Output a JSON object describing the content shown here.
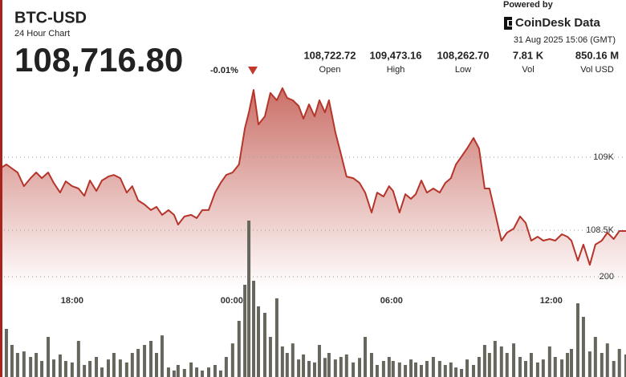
{
  "header": {
    "title": "BTC-USD",
    "subtitle": "24 Hour Chart",
    "price": "108,716.80",
    "change": "-0.01%",
    "powered_by": "Powered by",
    "brand": "CoinDesk Data",
    "timestamp": "31 Aug 2025 15:06 (GMT)",
    "stats": [
      {
        "value": "108,722.72",
        "label": "Open"
      },
      {
        "value": "109,473.16",
        "label": "High"
      },
      {
        "value": "108,262.70",
        "label": "Low"
      },
      {
        "value": "7.81 K",
        "label": "Vol"
      },
      {
        "value": "850.16 M",
        "label": "Vol USD"
      }
    ]
  },
  "chart_data": {
    "type": "line",
    "x": [
      15.29,
      15.53,
      15.74,
      15.95,
      16.19,
      16.44,
      16.65,
      16.86,
      17.1,
      17.31,
      17.55,
      17.76,
      18.0,
      18.24,
      18.46,
      18.67,
      18.91,
      19.12,
      19.36,
      19.57,
      19.81,
      20.05,
      20.26,
      20.48,
      20.72,
      20.96,
      21.17,
      21.38,
      21.62,
      21.83,
      21.98,
      22.22,
      22.47,
      22.68,
      22.89,
      23.13,
      23.37,
      23.58,
      23.79,
      24.03,
      24.27,
      24.49,
      24.64,
      24.82,
      25.0,
      25.24,
      25.45,
      25.69,
      25.9,
      26.08,
      26.29,
      26.51,
      26.69,
      26.9,
      27.11,
      27.29,
      27.5,
      27.65,
      27.89,
      28.1,
      28.31,
      28.56,
      28.8,
      29.01,
      29.25,
      29.46,
      29.7,
      29.91,
      30.06,
      30.3,
      30.52,
      30.73,
      30.91,
      31.12,
      31.33,
      31.57,
      31.81,
      32.02,
      32.23,
      32.42,
      32.63,
      32.84,
      33.08,
      33.29,
      33.5,
      33.68,
      33.89,
      34.13,
      34.34,
      34.59,
      34.83,
      35.04,
      35.25,
      35.49,
      35.7,
      35.94,
      36.15,
      36.4,
      36.61,
      36.76,
      37.0,
      37.21,
      37.45,
      37.66,
      37.9,
      38.11,
      38.35,
      38.56,
      38.81
    ],
    "series": [
      {
        "color": "#b5352a",
        "values": [
          108923,
          108951,
          108923,
          108896,
          108802,
          108857,
          108896,
          108857,
          108896,
          108824,
          108758,
          108835,
          108802,
          108786,
          108736,
          108841,
          108769,
          108841,
          108868,
          108879,
          108857,
          108758,
          108802,
          108704,
          108676,
          108638,
          108660,
          108605,
          108638,
          108605,
          108539,
          108594,
          108605,
          108583,
          108638,
          108638,
          108758,
          108824,
          108879,
          108896,
          108951,
          109198,
          109307,
          109461,
          109225,
          109280,
          109440,
          109390,
          109473,
          109406,
          109390,
          109351,
          109264,
          109362,
          109280,
          109390,
          109307,
          109390,
          109170,
          109022,
          108868,
          108857,
          108824,
          108758,
          108621,
          108758,
          108731,
          108802,
          108769,
          108621,
          108747,
          108715,
          108747,
          108841,
          108758,
          108786,
          108758,
          108824,
          108857,
          108951,
          109005,
          109060,
          109132,
          109060,
          108786,
          108786,
          108621,
          108429,
          108484,
          108511,
          108594,
          108550,
          108429,
          108456,
          108429,
          108440,
          108429,
          108473,
          108456,
          108429,
          108292,
          108402,
          108263,
          108402,
          108429,
          108484,
          108440,
          108495,
          108495
        ]
      }
    ],
    "volume": {
      "color": "#66665c",
      "axis": "y2",
      "values": [
        144,
        96,
        64,
        48,
        51,
        40,
        48,
        32,
        80,
        35,
        45,
        32,
        29,
        72,
        24,
        32,
        40,
        19,
        35,
        48,
        35,
        29,
        48,
        56,
        64,
        72,
        48,
        83,
        19,
        13,
        24,
        16,
        29,
        19,
        13,
        19,
        24,
        13,
        40,
        67,
        112,
        184,
        312,
        192,
        141,
        128,
        80,
        157,
        61,
        48,
        67,
        35,
        45,
        32,
        29,
        64,
        38,
        48,
        35,
        40,
        45,
        29,
        38,
        80,
        48,
        24,
        32,
        40,
        32,
        29,
        24,
        35,
        29,
        24,
        32,
        40,
        32,
        24,
        29,
        19,
        16,
        35,
        24,
        40,
        64,
        48,
        72,
        61,
        48,
        67,
        40,
        32,
        48,
        29,
        35,
        61,
        40,
        35,
        48,
        56,
        147,
        120,
        51,
        80,
        48,
        67,
        32,
        56,
        45
      ]
    },
    "xlim": [
      15.29,
      38.81
    ],
    "xticks": [
      {
        "value": 18,
        "label": "18:00"
      },
      {
        "value": 24,
        "label": "00:00"
      },
      {
        "value": 30,
        "label": "06:00"
      },
      {
        "value": 36,
        "label": "12:00"
      }
    ],
    "ylim": [
      107495,
      109555
    ],
    "yticks": [
      {
        "value": 109000,
        "label": "109K"
      },
      {
        "value": 108500,
        "label": "108.5K"
      }
    ],
    "y2lim": [
      0,
      600
    ],
    "y2ticks": [
      200
    ],
    "grid": true
  }
}
